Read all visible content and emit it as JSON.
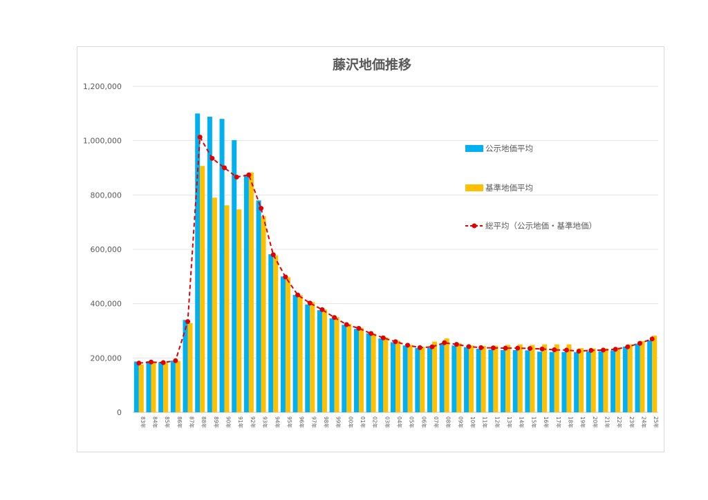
{
  "chart_data": {
    "type": "bar",
    "title": "藤沢地価推移",
    "xlabel": "",
    "ylabel": "",
    "ylim": [
      0,
      1200000
    ],
    "yticks": [
      0,
      200000,
      400000,
      600000,
      800000,
      1000000,
      1200000
    ],
    "ytick_labels": [
      "0",
      "200,000",
      "400,000",
      "600,000",
      "800,000",
      "1,000,000",
      "1,200,000"
    ],
    "grid": true,
    "legend_position": "right",
    "categories": [
      "83年",
      "84年",
      "85年",
      "86年",
      "87年",
      "88年",
      "89年",
      "90年",
      "91年",
      "92年",
      "93年",
      "94年",
      "95年",
      "96年",
      "97年",
      "98年",
      "99年",
      "00年",
      "01年",
      "02年",
      "03年",
      "04年",
      "05年",
      "06年",
      "07年",
      "08年",
      "09年",
      "10年",
      "11年",
      "12年",
      "13年",
      "14年",
      "15年",
      "16年",
      "17年",
      "18年",
      "19年",
      "20年",
      "21年",
      "22年",
      "23年",
      "24年",
      "25年"
    ],
    "series": [
      {
        "name": "公示地価平均",
        "kind": "bar",
        "color": "#00b0f0",
        "values": [
          187000,
          188000,
          185000,
          190000,
          340000,
          1100000,
          1088000,
          1080000,
          1002000,
          870000,
          780000,
          582000,
          500000,
          432000,
          397000,
          376000,
          346000,
          322000,
          307000,
          291000,
          272000,
          258000,
          246000,
          237000,
          237000,
          250000,
          246000,
          240000,
          234000,
          231000,
          229000,
          229000,
          228000,
          223000,
          222000,
          222000,
          222000,
          224000,
          225000,
          228000,
          242000,
          253000,
          265000
        ]
      },
      {
        "name": "基準地価平均",
        "kind": "bar",
        "color": "#ffc000",
        "values": [
          176000,
          182000,
          182000,
          189000,
          328000,
          907000,
          790000,
          762000,
          747000,
          883000,
          722000,
          578000,
          497000,
          432000,
          406000,
          379000,
          351000,
          325000,
          311000,
          290000,
          276000,
          263000,
          248000,
          240000,
          260000,
          272000,
          254000,
          246000,
          244000,
          245000,
          248000,
          250000,
          248000,
          250000,
          250000,
          250000,
          236000,
          235000,
          235000,
          238000,
          250000,
          262000,
          282000
        ]
      },
      {
        "name": "総平均（公示地価・基準地価）",
        "kind": "line",
        "style": "dashed",
        "color": "#e00000",
        "values": [
          181000,
          185000,
          183000,
          190000,
          334000,
          1013000,
          935000,
          900000,
          866000,
          874000,
          751000,
          580000,
          498000,
          432000,
          402000,
          378000,
          349000,
          323000,
          309000,
          290000,
          274000,
          260000,
          247000,
          238000,
          241000,
          256000,
          250000,
          242000,
          238000,
          237000,
          236000,
          236000,
          235000,
          233000,
          230000,
          229000,
          225000,
          228000,
          229000,
          232000,
          241000,
          254000,
          270000
        ]
      }
    ]
  }
}
